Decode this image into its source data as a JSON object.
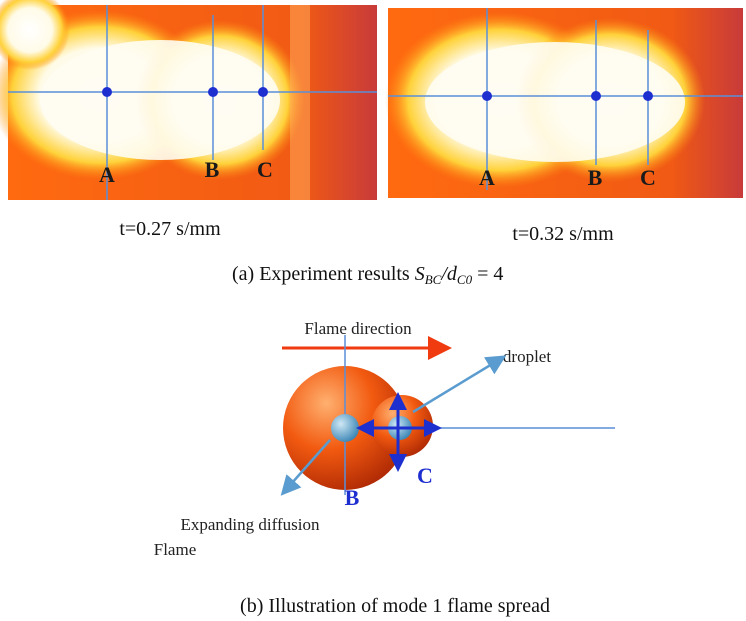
{
  "panel_a": {
    "images": [
      {
        "labels": [
          "A",
          "B",
          "C"
        ],
        "caption": "t=0.27 s/mm"
      },
      {
        "labels": [
          "A",
          "B",
          "C"
        ],
        "caption": "t=0.32 s/mm"
      }
    ],
    "caption": {
      "text": "(a) Experiment results",
      "s": "S",
      "s_sub": "BC",
      "d": "/d",
      "d_sub": "C0",
      "equals": " = 4"
    }
  },
  "panel_b": {
    "flame_direction": "Flame direction",
    "droplet": "droplet",
    "point_b": "B",
    "point_c": "C",
    "flame_label_1": "Expanding diffusion",
    "flame_label_2": "Flame",
    "caption": "(b) Illustration of mode 1 flame spread"
  }
}
